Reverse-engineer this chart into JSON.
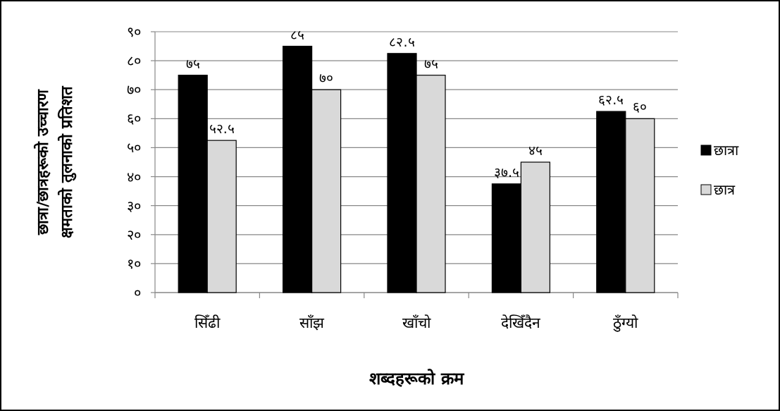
{
  "chart_data": {
    "type": "bar",
    "xlabel": "शब्दहरूको क्रम",
    "ylabel": "छात्रा/छात्रहरूको उच्चारण\nक्षमताको तुलनाको प्रतिशत",
    "categories": [
      "सिँढी",
      "साँझ",
      "खाँचो",
      "देखिँदैन",
      "ठुँग्यो"
    ],
    "series": [
      {
        "name": "छात्रा",
        "color": "#000000",
        "values": [
          75,
          85,
          82.5,
          37.5,
          62.5
        ],
        "value_labels": [
          "७५",
          "८५",
          "८२.५",
          "३७.५",
          "६२.५"
        ]
      },
      {
        "name": "छात्र",
        "color": "#d9d9d9",
        "values": [
          52.5,
          70,
          75,
          45,
          60
        ],
        "value_labels": [
          "५२.५",
          "७०",
          "७५",
          "४५",
          "६०"
        ]
      }
    ],
    "ylim": [
      0,
      90
    ],
    "yticks": [
      {
        "value": 0,
        "label": "०"
      },
      {
        "value": 10,
        "label": "१०"
      },
      {
        "value": 20,
        "label": "२०"
      },
      {
        "value": 30,
        "label": "३०"
      },
      {
        "value": 40,
        "label": "४०"
      },
      {
        "value": 50,
        "label": "५०"
      },
      {
        "value": 60,
        "label": "६०"
      },
      {
        "value": 70,
        "label": "७०"
      },
      {
        "value": 80,
        "label": "८०"
      },
      {
        "value": 90,
        "label": "९०"
      }
    ],
    "grid": "y",
    "legend": "right"
  }
}
